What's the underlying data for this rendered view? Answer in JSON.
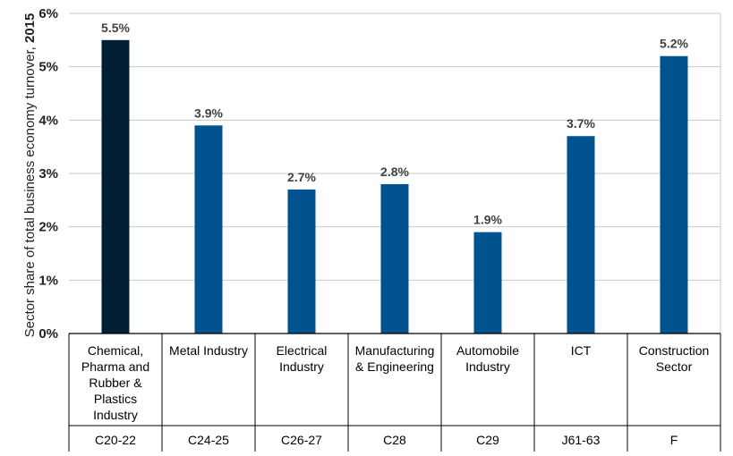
{
  "chart_data": {
    "type": "bar",
    "title": "",
    "ylabel_text": "Sector share of total business economy turnover, ",
    "ylabel_year": "2015",
    "ylim": [
      0,
      6
    ],
    "grid": true,
    "yticks": [
      "0%",
      "1%",
      "2%",
      "3%",
      "4%",
      "5%",
      "6%"
    ],
    "categories": [
      {
        "lines": [
          "Chemical,",
          "Pharma and",
          "Rubber &",
          "Plastics",
          "Industry"
        ],
        "code": "C20-22"
      },
      {
        "lines": [
          "Metal Industry"
        ],
        "code": "C24-25"
      },
      {
        "lines": [
          "Electrical",
          "Industry"
        ],
        "code": "C26-27"
      },
      {
        "lines": [
          "Manufacturing",
          "& Engineering"
        ],
        "code": "C28"
      },
      {
        "lines": [
          "Automobile",
          "Industry"
        ],
        "code": "C29"
      },
      {
        "lines": [
          "ICT"
        ],
        "code": "J61-63"
      },
      {
        "lines": [
          "Construction",
          "Sector"
        ],
        "code": "F"
      }
    ],
    "values": [
      5.5,
      3.9,
      2.7,
      2.8,
      1.9,
      3.7,
      5.2
    ],
    "data_labels": [
      "5.5%",
      "3.9%",
      "2.7%",
      "2.8%",
      "1.9%",
      "3.7%",
      "5.2%"
    ],
    "colors": {
      "highlight": "#001F35",
      "bar": "#00538E",
      "grid": "#C8C8C8",
      "axis": "#000000"
    },
    "highlight_index": 0
  }
}
